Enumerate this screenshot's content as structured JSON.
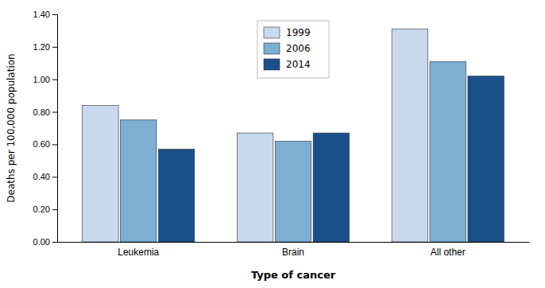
{
  "chart_data": {
    "type": "bar",
    "categories": [
      "Leukemia",
      "Brain",
      "All other"
    ],
    "series": [
      {
        "name": "1999",
        "color": "#c8d8ee",
        "values": [
          0.84,
          0.67,
          1.31
        ]
      },
      {
        "name": "2006",
        "color": "#7bafd4",
        "values": [
          0.75,
          0.62,
          1.11
        ]
      },
      {
        "name": "2014",
        "color": "#1a4f8a",
        "values": [
          0.57,
          0.67,
          1.02
        ]
      }
    ],
    "xlabel": "Type of cancer",
    "ylabel": "Deaths per 100,000 population",
    "ylim": [
      0.0,
      1.4
    ],
    "yticks": [
      {
        "value": 0.0,
        "label": "0.00"
      },
      {
        "value": 0.2,
        "label": "0.20"
      },
      {
        "value": 0.4,
        "label": "0.40"
      },
      {
        "value": 0.6,
        "label": "0.60"
      },
      {
        "value": 0.8,
        "label": "0.80"
      },
      {
        "value": 1.0,
        "label": "1.00"
      },
      {
        "value": 1.2,
        "label": "1.20"
      },
      {
        "value": 1.4,
        "label": "1.40"
      }
    ],
    "grid": false,
    "legend": "upper center"
  }
}
